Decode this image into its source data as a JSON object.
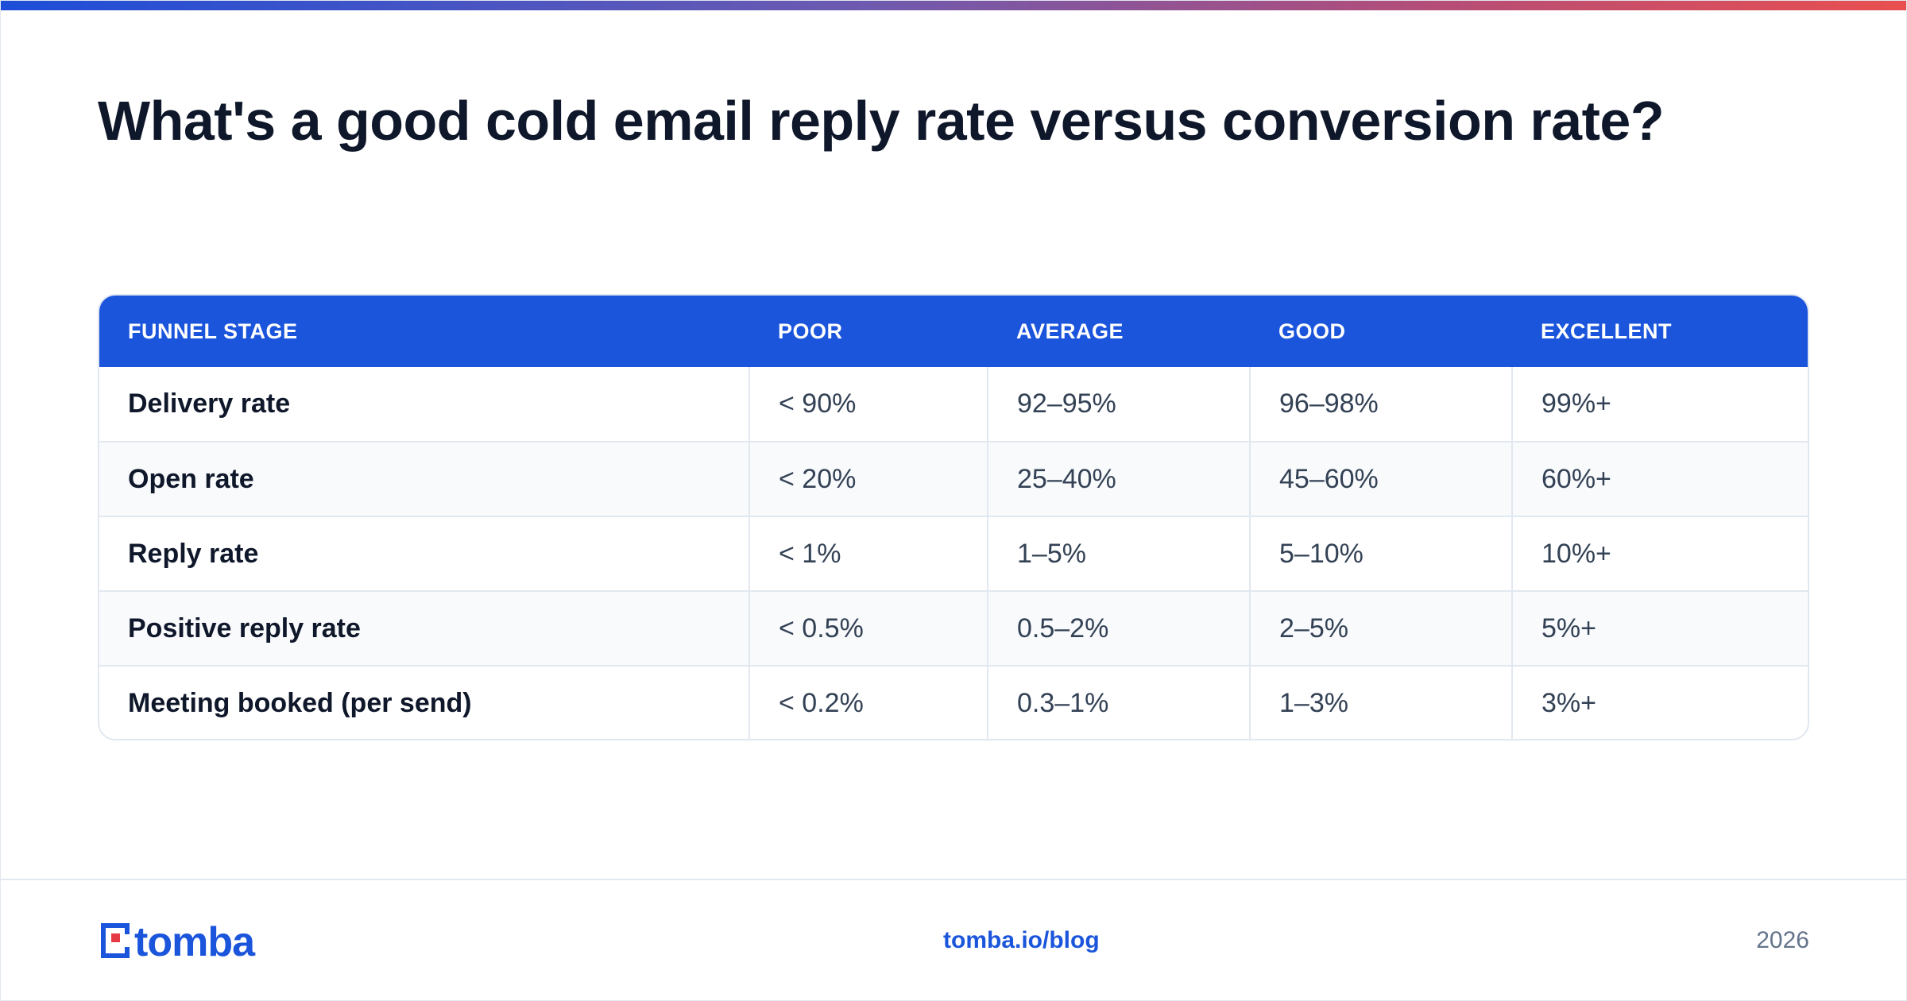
{
  "title": "What's a good cold email reply rate versus conversion rate?",
  "table": {
    "headers": [
      "FUNNEL STAGE",
      "POOR",
      "AVERAGE",
      "GOOD",
      "EXCELLENT"
    ],
    "rows": [
      [
        "Delivery rate",
        "< 90%",
        "92–95%",
        "96–98%",
        "99%+"
      ],
      [
        "Open rate",
        "< 20%",
        "25–40%",
        "45–60%",
        "60%+"
      ],
      [
        "Reply rate",
        "< 1%",
        "1–5%",
        "5–10%",
        "10%+"
      ],
      [
        "Positive reply rate",
        "< 0.5%",
        "0.5–2%",
        "2–5%",
        "5%+"
      ],
      [
        "Meeting booked (per send)",
        "< 0.2%",
        "0.3–1%",
        "1–3%",
        "3%+"
      ]
    ]
  },
  "footer": {
    "logo_text": "tomba",
    "link": "tomba.io/blog",
    "year": "2026"
  },
  "colors": {
    "brand_blue": "#1b55dc",
    "brand_red": "#e63946",
    "text_dark": "#0f172a"
  }
}
